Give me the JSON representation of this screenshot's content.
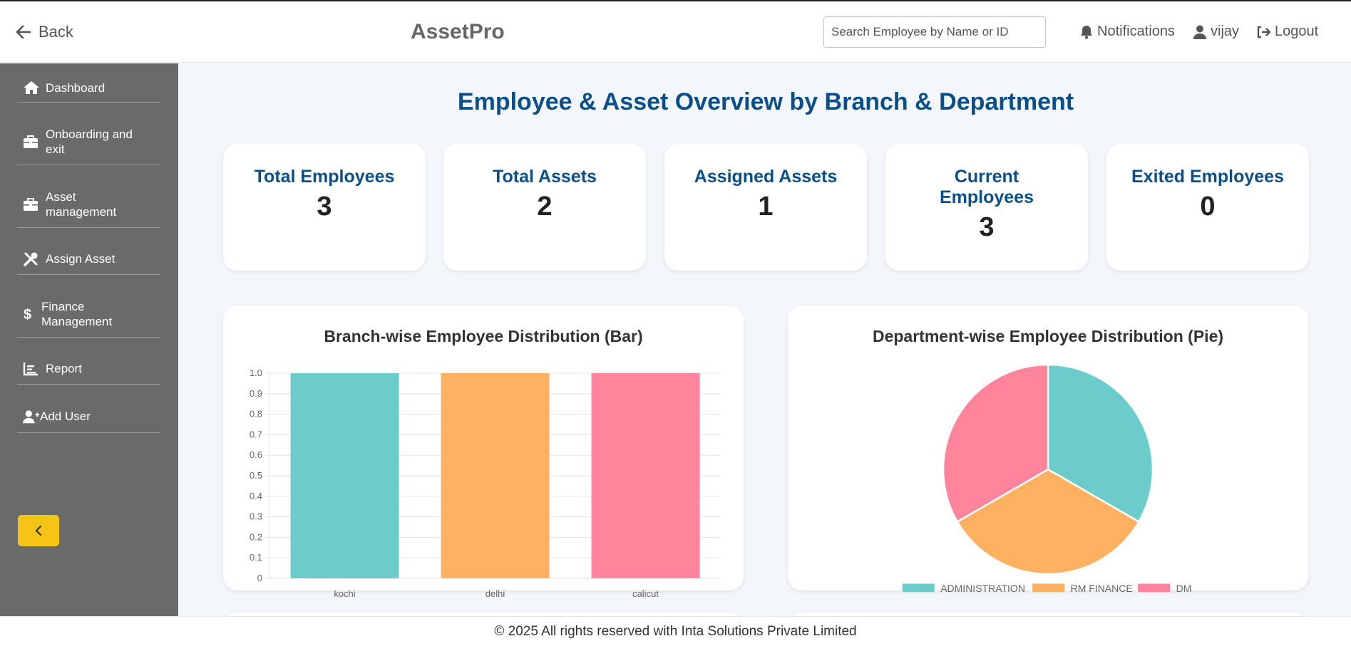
{
  "header": {
    "back_label": "Back",
    "brand": "AssetPro",
    "search_placeholder": "Search Employee by Name or ID",
    "notifications_label": "Notifications",
    "user_label": "vijay",
    "logout_label": "Logout"
  },
  "sidebar": {
    "items": [
      {
        "label": "Dashboard",
        "icon": "home-icon"
      },
      {
        "label": "Onboarding and exit",
        "icon": "briefcase-icon"
      },
      {
        "label": "Asset management",
        "icon": "briefcase-icon"
      },
      {
        "label": "Assign Asset",
        "icon": "tools-icon"
      },
      {
        "label": "Finance Management",
        "icon": "dollar-icon"
      },
      {
        "label": "Report",
        "icon": "chart-icon"
      },
      {
        "label": "Add User",
        "icon": "user-plus-icon"
      }
    ],
    "collapse_icon": "chevron-left-icon",
    "collapse_color": "#f6c417"
  },
  "main": {
    "title": "Employee & Asset Overview by Branch & Department",
    "stats": [
      {
        "label": "Total Employees",
        "value": "3"
      },
      {
        "label": "Total Assets",
        "value": "2"
      },
      {
        "label": "Assigned Assets",
        "value": "1"
      },
      {
        "label": "Current Employees",
        "value": "3"
      },
      {
        "label": "Exited Employees",
        "value": "0"
      }
    ]
  },
  "chart_data": [
    {
      "type": "bar",
      "title": "Branch-wise Employee Distribution (Bar)",
      "categories": [
        "kochi",
        "delhi",
        "calicut"
      ],
      "values": [
        1,
        1,
        1
      ],
      "colors": [
        "#6ccccc",
        "#ffb061",
        "#ff849c"
      ],
      "ylim": [
        0,
        1
      ],
      "yticks": [
        "0",
        "0.1",
        "0.2",
        "0.3",
        "0.4",
        "0.5",
        "0.6",
        "0.7",
        "0.8",
        "0.9",
        "1.0"
      ],
      "grid": true
    },
    {
      "type": "pie",
      "title": "Department-wise Employee Distribution (Pie)",
      "labels": [
        "ADMINISTRATION",
        "RM FINANCE",
        "DM"
      ],
      "values": [
        1,
        1,
        1
      ],
      "colors": [
        "#6ccccc",
        "#ffb061",
        "#ff849c"
      ],
      "legend": "bottom"
    }
  ],
  "footer": {
    "text": "© 2025 All rights reserved with Inta Solutions Private Limited"
  }
}
